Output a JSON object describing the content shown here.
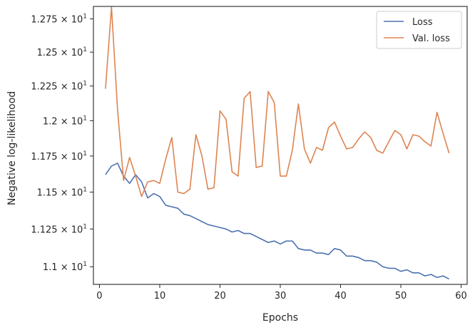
{
  "chart_data": {
    "type": "line",
    "xlabel": "Epochs",
    "ylabel": "Negative log-likelihood",
    "xlim": [
      -1,
      61
    ],
    "ylim": [
      10.885,
      12.845
    ],
    "yscale": "log",
    "grid": false,
    "legend_position": "top-right",
    "x_ticks": [
      {
        "value": 0,
        "label": "0"
      },
      {
        "value": 10,
        "label": "10"
      },
      {
        "value": 20,
        "label": "20"
      },
      {
        "value": 30,
        "label": "30"
      },
      {
        "value": 40,
        "label": "40"
      },
      {
        "value": 50,
        "label": "50"
      },
      {
        "value": 60,
        "label": "60"
      }
    ],
    "y_ticks": [
      {
        "value": 11.0,
        "mantissa": "1.1",
        "exponent": "1"
      },
      {
        "value": 11.25,
        "mantissa": "1.125",
        "exponent": "1"
      },
      {
        "value": 11.5,
        "mantissa": "1.15",
        "exponent": "1"
      },
      {
        "value": 11.75,
        "mantissa": "1.175",
        "exponent": "1"
      },
      {
        "value": 12.0,
        "mantissa": "1.2",
        "exponent": "1"
      },
      {
        "value": 12.25,
        "mantissa": "1.225",
        "exponent": "1"
      },
      {
        "value": 12.5,
        "mantissa": "1.25",
        "exponent": "1"
      },
      {
        "value": 12.75,
        "mantissa": "1.275",
        "exponent": "1"
      }
    ],
    "x": [
      1,
      2,
      3,
      4,
      5,
      6,
      7,
      8,
      9,
      10,
      11,
      12,
      13,
      14,
      15,
      16,
      17,
      18,
      19,
      20,
      21,
      22,
      23,
      24,
      25,
      26,
      27,
      28,
      29,
      30,
      31,
      32,
      33,
      34,
      35,
      36,
      37,
      38,
      39,
      40,
      41,
      42,
      43,
      44,
      45,
      46,
      47,
      48,
      49,
      50,
      51,
      52,
      53,
      54,
      55,
      56,
      57,
      58
    ],
    "series": [
      {
        "name": "Loss",
        "color": "#4c72b0",
        "values": [
          11.62,
          11.68,
          11.7,
          11.61,
          11.56,
          11.62,
          11.57,
          11.46,
          11.49,
          11.47,
          11.41,
          11.4,
          11.39,
          11.35,
          11.34,
          11.32,
          11.3,
          11.28,
          11.27,
          11.26,
          11.25,
          11.23,
          11.24,
          11.22,
          11.22,
          11.2,
          11.18,
          11.16,
          11.17,
          11.15,
          11.17,
          11.17,
          11.12,
          11.11,
          11.11,
          11.09,
          11.09,
          11.08,
          11.12,
          11.11,
          11.07,
          11.07,
          11.06,
          11.04,
          11.04,
          11.03,
          11.0,
          10.99,
          10.99,
          10.97,
          10.98,
          10.96,
          10.96,
          10.94,
          10.95,
          10.93,
          10.94,
          10.92
        ]
      },
      {
        "name": "Val. loss",
        "color": "#dd8452",
        "values": [
          12.23,
          12.84,
          12.08,
          11.58,
          11.74,
          11.61,
          11.47,
          11.57,
          11.58,
          11.56,
          11.73,
          11.88,
          11.5,
          11.49,
          11.52,
          11.9,
          11.75,
          11.52,
          11.53,
          12.07,
          12.01,
          11.64,
          11.61,
          12.16,
          12.21,
          11.67,
          11.68,
          12.21,
          12.13,
          11.61,
          11.61,
          11.79,
          12.12,
          11.8,
          11.7,
          11.81,
          11.79,
          11.95,
          11.99,
          11.89,
          11.8,
          11.81,
          11.87,
          11.92,
          11.88,
          11.79,
          11.77,
          11.85,
          11.93,
          11.9,
          11.8,
          11.9,
          11.89,
          11.85,
          11.82,
          12.06,
          11.91,
          11.77
        ]
      }
    ]
  }
}
